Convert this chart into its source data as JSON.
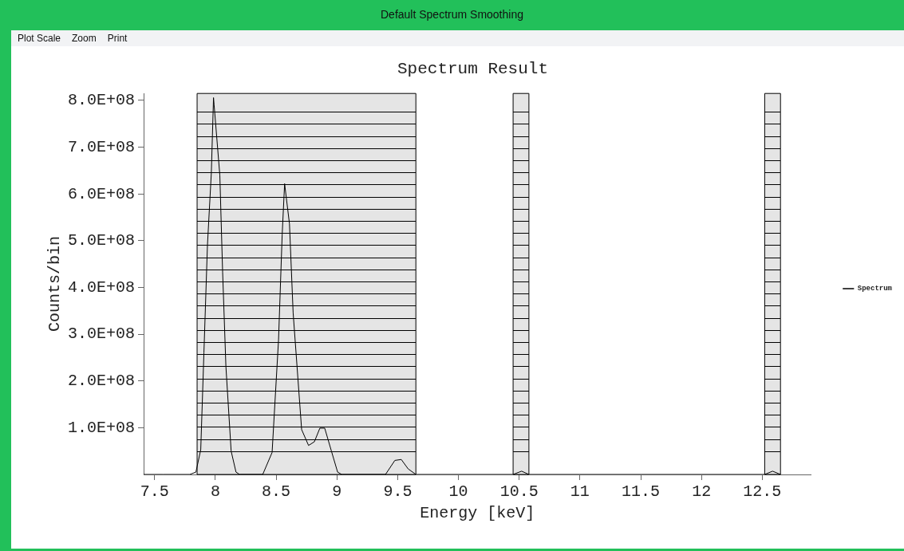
{
  "chart_data": {
    "type": "line",
    "title": "Spectrum Result",
    "xlabel": "Energy [keV]",
    "ylabel": "Counts/bin",
    "annotations": [
      "Default Spectrum Smoothing",
      "Plot Scale",
      "Zoom",
      "Print"
    ],
    "x": [
      7.41,
      7.57,
      7.79,
      7.84,
      7.88,
      7.906,
      7.935,
      7.967,
      7.985,
      7.99,
      8.037,
      8.06,
      8.087,
      8.13,
      8.17,
      8.2,
      8.39,
      8.467,
      8.52,
      8.55,
      8.57,
      8.61,
      8.64,
      8.71,
      8.767,
      8.815,
      8.86,
      8.9,
      8.955,
      9.006,
      9.04,
      9.4,
      9.477,
      9.53,
      9.586,
      9.65,
      10.45,
      10.52,
      10.58,
      12.52,
      12.585,
      12.65
    ],
    "series": [
      {
        "name": "Spectrum",
        "color": "#000000",
        "values": [
          0,
          0,
          0,
          5000000,
          53000000,
          260000000,
          490000000,
          645000000,
          806000000,
          790000000,
          640000000,
          433000000,
          231000000,
          50000000,
          5000000,
          0,
          0,
          47000000,
          288000000,
          513000000,
          622000000,
          536000000,
          346000000,
          96000000,
          62000000,
          70000000,
          99000000,
          99000000,
          50000000,
          5000000,
          0,
          0,
          30000000,
          32000000,
          12000000,
          0,
          0,
          7000000,
          0,
          0,
          7000000,
          0
        ]
      }
    ],
    "xlim": [
      7.41,
      12.9
    ],
    "xticks": [
      {
        "value": 7.5,
        "label": "7.5"
      },
      8,
      {
        "value": 8.5,
        "label": "8.5"
      },
      9,
      {
        "value": 9.5,
        "label": "9.5"
      },
      10,
      {
        "value": 10.5,
        "label": "10.5"
      },
      11,
      {
        "value": 11.5,
        "label": "11.5"
      },
      12,
      {
        "value": 12.5,
        "label": "12.5"
      }
    ],
    "ylim": [
      0,
      815000000
    ],
    "yticks": [
      {
        "value": 100000000,
        "label": "1.0E+08"
      },
      {
        "value": 200000000,
        "label": "2.0E+08"
      },
      {
        "value": 300000000,
        "label": "3.0E+08"
      },
      {
        "value": 400000000,
        "label": "4.0E+08"
      },
      {
        "value": 500000000,
        "label": "5.0E+08"
      },
      {
        "value": 600000000,
        "label": "6.0E+08"
      },
      {
        "value": 700000000,
        "label": "7.0E+08"
      },
      {
        "value": 800000000,
        "label": "8.0E+08"
      }
    ],
    "bands": [
      {
        "axis": "x",
        "from": 7.85,
        "to": 9.65,
        "color": "#000000"
      },
      {
        "axis": "x",
        "from": 10.45,
        "to": 10.58,
        "color": "#000000"
      },
      {
        "axis": "x",
        "from": 12.52,
        "to": 12.65,
        "color": "#000000"
      }
    ],
    "grid": false,
    "legend": "right",
    "marker": "none",
    "line_style": "solid"
  }
}
